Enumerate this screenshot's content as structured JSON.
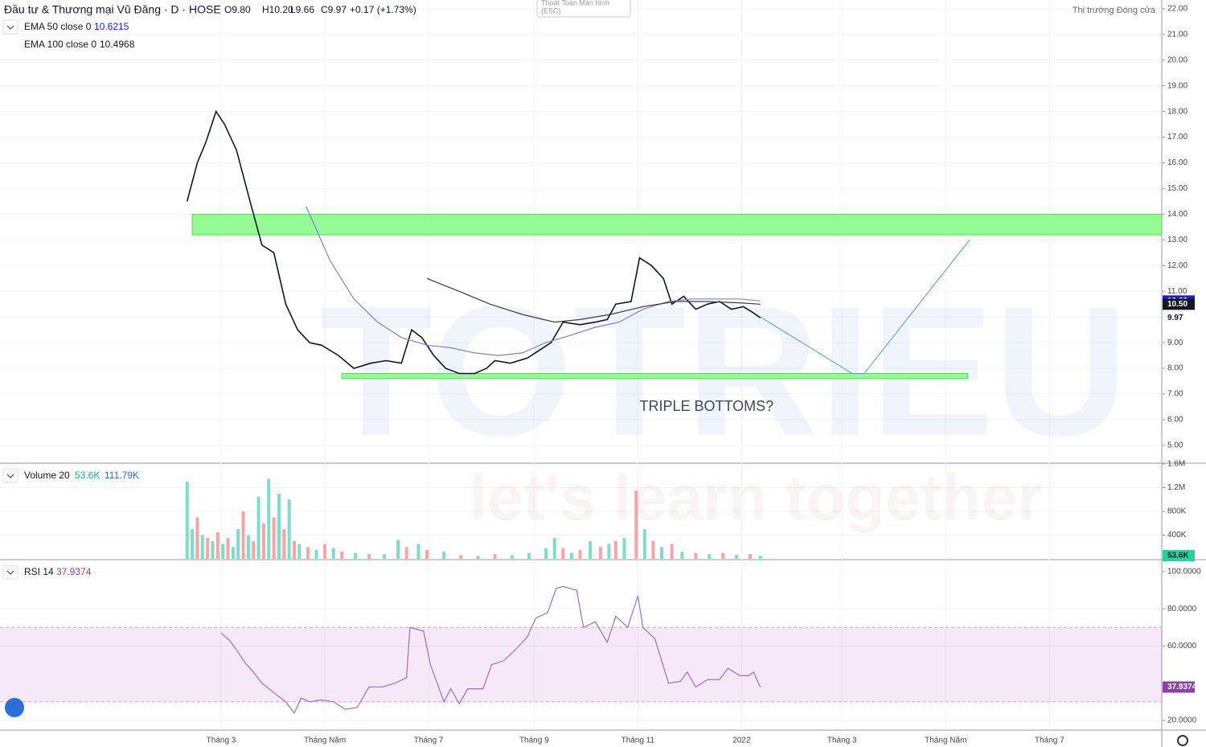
{
  "chart_data": [
    {
      "type": "line",
      "title": "Đầu tư & Thương mại Vũ Đăng · D · HOSE",
      "quote": [
        "O9.80",
        "H10.20",
        "L9.66",
        "C9.97",
        "+0.17 (+1.73%)"
      ],
      "xlim": [
        -71,
        612
      ],
      "ylim": [
        4.34,
        22.34
      ],
      "grid": true,
      "yticks": [
        {
          "value": 5,
          "label": "5.00"
        },
        {
          "value": 6,
          "label": "6.00"
        },
        {
          "value": 7,
          "label": "7.00"
        },
        {
          "value": 8,
          "label": "8.00"
        },
        {
          "value": 9,
          "label": "9.00"
        },
        {
          "value": 10,
          "label": "10.00"
        },
        {
          "value": 11,
          "label": "11.00"
        },
        {
          "value": 12,
          "label": "12.00"
        },
        {
          "value": 13,
          "label": "13.00"
        },
        {
          "value": 14,
          "label": "14.00"
        },
        {
          "value": 15,
          "label": "15.00"
        },
        {
          "value": 16,
          "label": "16.00"
        },
        {
          "value": 17,
          "label": "17.00"
        },
        {
          "value": 18,
          "label": "18.00"
        },
        {
          "value": 19,
          "label": "19.00"
        },
        {
          "value": 20,
          "label": "20.00"
        },
        {
          "value": 21,
          "label": "21.00"
        },
        {
          "value": 22,
          "label": "22.00"
        }
      ],
      "series": [
        {
          "color": "#131722",
          "x": [
            39,
            45,
            50,
            56,
            61,
            68,
            76,
            83,
            90,
            97,
            104,
            111,
            118,
            128,
            137,
            147,
            156,
            165,
            171,
            177,
            184,
            191,
            199,
            208,
            215,
            220,
            229,
            239,
            246,
            253,
            260,
            270,
            279,
            286,
            291,
            300,
            305,
            312,
            319,
            324,
            331,
            338,
            345,
            352,
            359,
            366,
            371,
            376
          ],
          "values": [
            14.5,
            16.0,
            16.8,
            18.0,
            17.5,
            16.5,
            14.5,
            12.8,
            12.5,
            10.5,
            9.5,
            9.0,
            8.9,
            8.5,
            8.0,
            8.2,
            8.3,
            8.2,
            9.5,
            9.2,
            8.5,
            8.0,
            7.8,
            7.8,
            8.0,
            8.3,
            8.2,
            8.4,
            8.7,
            9.0,
            9.8,
            9.7,
            9.8,
            9.9,
            10.5,
            10.6,
            12.3,
            12.0,
            11.5,
            10.5,
            10.8,
            10.3,
            10.5,
            10.6,
            10.3,
            10.4,
            10.2,
            9.97
          ]
        },
        {
          "name": "EMA 50 close 0",
          "color": "#7b83c9",
          "badge_color": "#1c1cd6",
          "last_label": "10.62",
          "x": [
            109,
            123,
            137,
            151,
            165,
            180,
            194,
            208,
            222,
            236,
            250,
            265,
            279,
            293,
            307,
            322,
            336,
            350,
            364,
            376
          ],
          "values": [
            14.3,
            12.2,
            10.7,
            9.8,
            9.2,
            8.9,
            8.8,
            8.6,
            8.5,
            8.6,
            9.0,
            9.3,
            9.6,
            9.8,
            10.3,
            10.6,
            10.7,
            10.7,
            10.7,
            10.6215
          ]
        },
        {
          "name": "EMA 100 close 0",
          "color": "#3c3c44",
          "badge_color": "#131722",
          "last_label": "10.50",
          "x": [
            180,
            199,
            217,
            236,
            255,
            270,
            288,
            307,
            326,
            345,
            364,
            376
          ],
          "values": [
            11.5,
            11.0,
            10.5,
            10.1,
            9.8,
            9.9,
            10.1,
            10.4,
            10.6,
            10.6,
            10.55,
            10.4968
          ]
        }
      ],
      "zones": [
        {
          "x": [
            42,
            612
          ],
          "y": [
            13.2,
            14.0
          ],
          "color": "#95f995"
        },
        {
          "x": [
            130,
            498
          ],
          "y": [
            7.6,
            7.8
          ],
          "color": "#95f995"
        }
      ],
      "projection": {
        "x": [
          376,
          430,
          437,
          499
        ],
        "values": [
          10.0,
          7.8,
          7.8,
          13.0
        ],
        "color": "#4aa7a0"
      },
      "annotation": {
        "text": "TRIPLE BOTTOMS?",
        "x": 305,
        "y": 6.5
      }
    },
    {
      "type": "bar",
      "name": "Volume 20",
      "ma": {
        "value": 111790,
        "label": "111.79K"
      },
      "xlim": [
        -71,
        612
      ],
      "ylim": [
        0,
        1600000
      ],
      "last_label": "53.6K",
      "yticks": [
        {
          "value": 400000,
          "label": "400K"
        },
        {
          "value": 800000,
          "label": "800K"
        },
        {
          "value": 1200000,
          "label": "1.2M"
        },
        {
          "value": 1600000,
          "label": "1.6M"
        }
      ],
      "x": [
        39,
        42,
        45,
        48,
        51,
        54,
        57,
        60,
        63,
        66,
        69,
        72,
        75,
        78,
        81,
        84,
        87,
        90,
        93,
        96,
        99,
        102,
        105,
        110,
        115,
        120,
        125,
        130,
        138,
        146,
        155,
        163,
        168,
        175,
        180,
        190,
        200,
        210,
        220,
        230,
        240,
        250,
        255,
        260,
        265,
        270,
        276,
        282,
        287,
        291,
        296,
        303,
        308,
        313,
        318,
        324,
        330,
        338,
        346,
        354,
        362,
        370,
        376
      ],
      "values": [
        1300000,
        500000,
        700000,
        400000,
        350000,
        300000,
        450000,
        250000,
        350000,
        200000,
        500000,
        800000,
        400000,
        300000,
        1050000,
        600000,
        1350000,
        700000,
        1100000,
        500000,
        1000000,
        300000,
        250000,
        200000,
        150000,
        250000,
        180000,
        120000,
        100000,
        80000,
        80000,
        320000,
        200000,
        250000,
        150000,
        120000,
        60000,
        50000,
        80000,
        60000,
        100000,
        180000,
        350000,
        180000,
        100000,
        150000,
        300000,
        200000,
        250000,
        300000,
        350000,
        1150000,
        500000,
        300000,
        200000,
        250000,
        120000,
        100000,
        80000,
        100000,
        70000,
        80000,
        53600
      ],
      "colors": [
        "#7fdcc6",
        "#7fdcc6",
        "#f6a5a5",
        "#7fdcc6",
        "#f6a5a5",
        "#7fdcc6",
        "#f6a5a5",
        "#7fdcc6",
        "#f6a5a5",
        "#7fdcc6",
        "#7fdcc6",
        "#f6a5a5",
        "#7fdcc6",
        "#f6a5a5",
        "#7fdcc6",
        "#f6a5a5",
        "#7fdcc6",
        "#f6a5a5",
        "#7fdcc6",
        "#f6a5a5",
        "#7fdcc6",
        "#f6a5a5",
        "#7fdcc6",
        "#f6a5a5",
        "#7fdcc6",
        "#f6a5a5",
        "#7fdcc6",
        "#f6a5a5",
        "#7fdcc6",
        "#f6a5a5",
        "#7fdcc6",
        "#7fdcc6",
        "#f6a5a5",
        "#7fdcc6",
        "#f6a5a5",
        "#7fdcc6",
        "#f6a5a5",
        "#7fdcc6",
        "#f6a5a5",
        "#7fdcc6",
        "#7fdcc6",
        "#7fdcc6",
        "#7fdcc6",
        "#f6a5a5",
        "#7fdcc6",
        "#f6a5a5",
        "#7fdcc6",
        "#f6a5a5",
        "#7fdcc6",
        "#f6a5a5",
        "#7fdcc6",
        "#f6a5a5",
        "#7fdcc6",
        "#f6a5a5",
        "#7fdcc6",
        "#f6a5a5",
        "#7fdcc6",
        "#f6a5a5",
        "#7fdcc6",
        "#f6a5a5",
        "#7fdcc6",
        "#f6a5a5",
        "#7fdcc6"
      ]
    },
    {
      "type": "line",
      "name": "RSI 14",
      "color": "#a66bbd",
      "band": [
        30,
        70
      ],
      "xlim": [
        -71,
        612
      ],
      "ylim": [
        14.8,
        106
      ],
      "yticks": [
        {
          "value": 20,
          "label": "20.0000"
        },
        {
          "value": 60,
          "label": "60.0000"
        },
        {
          "value": 80,
          "label": "80.0000"
        },
        {
          "value": 100,
          "label": "100.0000"
        }
      ],
      "xticks": [
        {
          "value": 59,
          "label": "Tháng 3"
        },
        {
          "value": 120,
          "label": "Tháng Năm"
        },
        {
          "value": 181,
          "label": "Tháng 7"
        },
        {
          "value": 243,
          "label": "Tháng 9"
        },
        {
          "value": 304,
          "label": "Tháng 11"
        },
        {
          "value": 365,
          "label": "2022"
        },
        {
          "value": 424,
          "label": "Tháng 3"
        },
        {
          "value": 485,
          "label": "Tháng Năm"
        },
        {
          "value": 546,
          "label": "Tháng 7"
        }
      ],
      "x": [
        59,
        64,
        68,
        73,
        78,
        83,
        90,
        97,
        102,
        106,
        111,
        118,
        125,
        132,
        139,
        146,
        154,
        161,
        168,
        170,
        178,
        182,
        190,
        194,
        199,
        204,
        213,
        218,
        225,
        232,
        239,
        244,
        251,
        256,
        260,
        268,
        272,
        279,
        286,
        291,
        298,
        304,
        307,
        314,
        322,
        329,
        333,
        338,
        345,
        352,
        357,
        364,
        369,
        372,
        376
      ],
      "values": [
        67,
        63,
        58,
        51,
        46,
        40,
        35,
        30,
        24,
        32,
        30,
        31,
        30,
        26,
        27,
        38,
        38,
        40,
        43,
        70,
        68,
        50,
        30,
        37,
        29,
        37,
        37,
        50,
        52,
        58,
        65,
        75,
        78,
        91,
        92,
        90,
        70,
        73,
        62,
        76,
        70,
        87,
        70,
        64,
        40,
        41,
        46,
        38,
        42,
        42,
        48,
        44,
        44,
        46,
        37.9374
      ]
    }
  ],
  "status": "Thị trường Đóng cửa",
  "exit_button": [
    "Thoát Toàn Màn hình",
    "(ESC)"
  ],
  "watermark": [
    "TOTRIEU",
    "let's learn together"
  ]
}
